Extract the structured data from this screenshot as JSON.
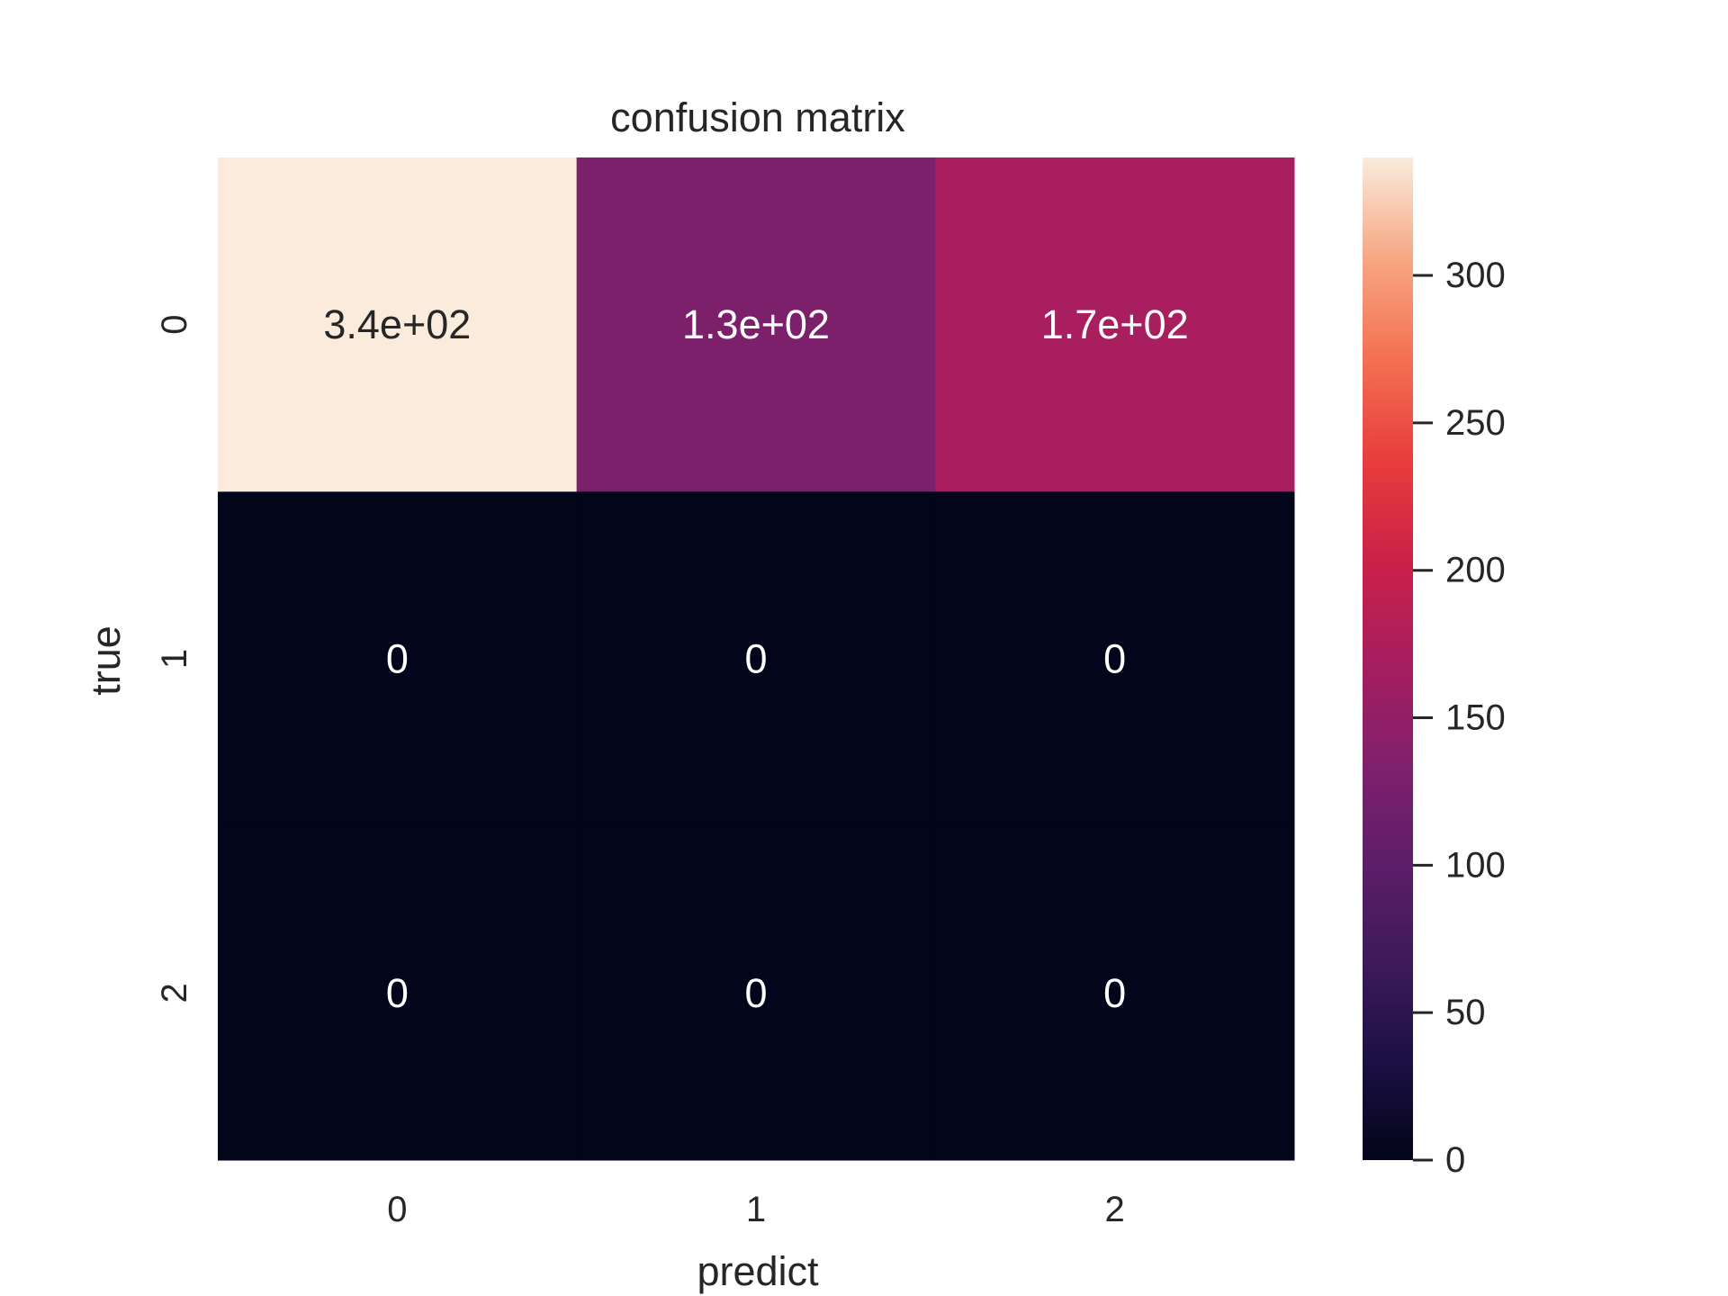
{
  "chart_data": {
    "type": "heatmap",
    "title": "confusion matrix",
    "xlabel": "predict",
    "ylabel": "true",
    "x_categories": [
      "0",
      "1",
      "2"
    ],
    "y_categories": [
      "0",
      "1",
      "2"
    ],
    "values": [
      [
        340,
        130,
        170
      ],
      [
        0,
        0,
        0
      ],
      [
        0,
        0,
        0
      ]
    ],
    "annotations": [
      [
        "3.4e+02",
        "1.3e+02",
        "1.7e+02"
      ],
      [
        "0",
        "0",
        "0"
      ],
      [
        "0",
        "0",
        "0"
      ]
    ],
    "colorbar": {
      "min": 0,
      "max": 340,
      "ticks": [
        0,
        50,
        100,
        150,
        200,
        250,
        300
      ],
      "tick_labels": [
        "0",
        "50",
        "100",
        "150",
        "200",
        "250",
        "300"
      ],
      "colormap": "rocket"
    },
    "grid": false,
    "legend": "colorbar-right"
  }
}
